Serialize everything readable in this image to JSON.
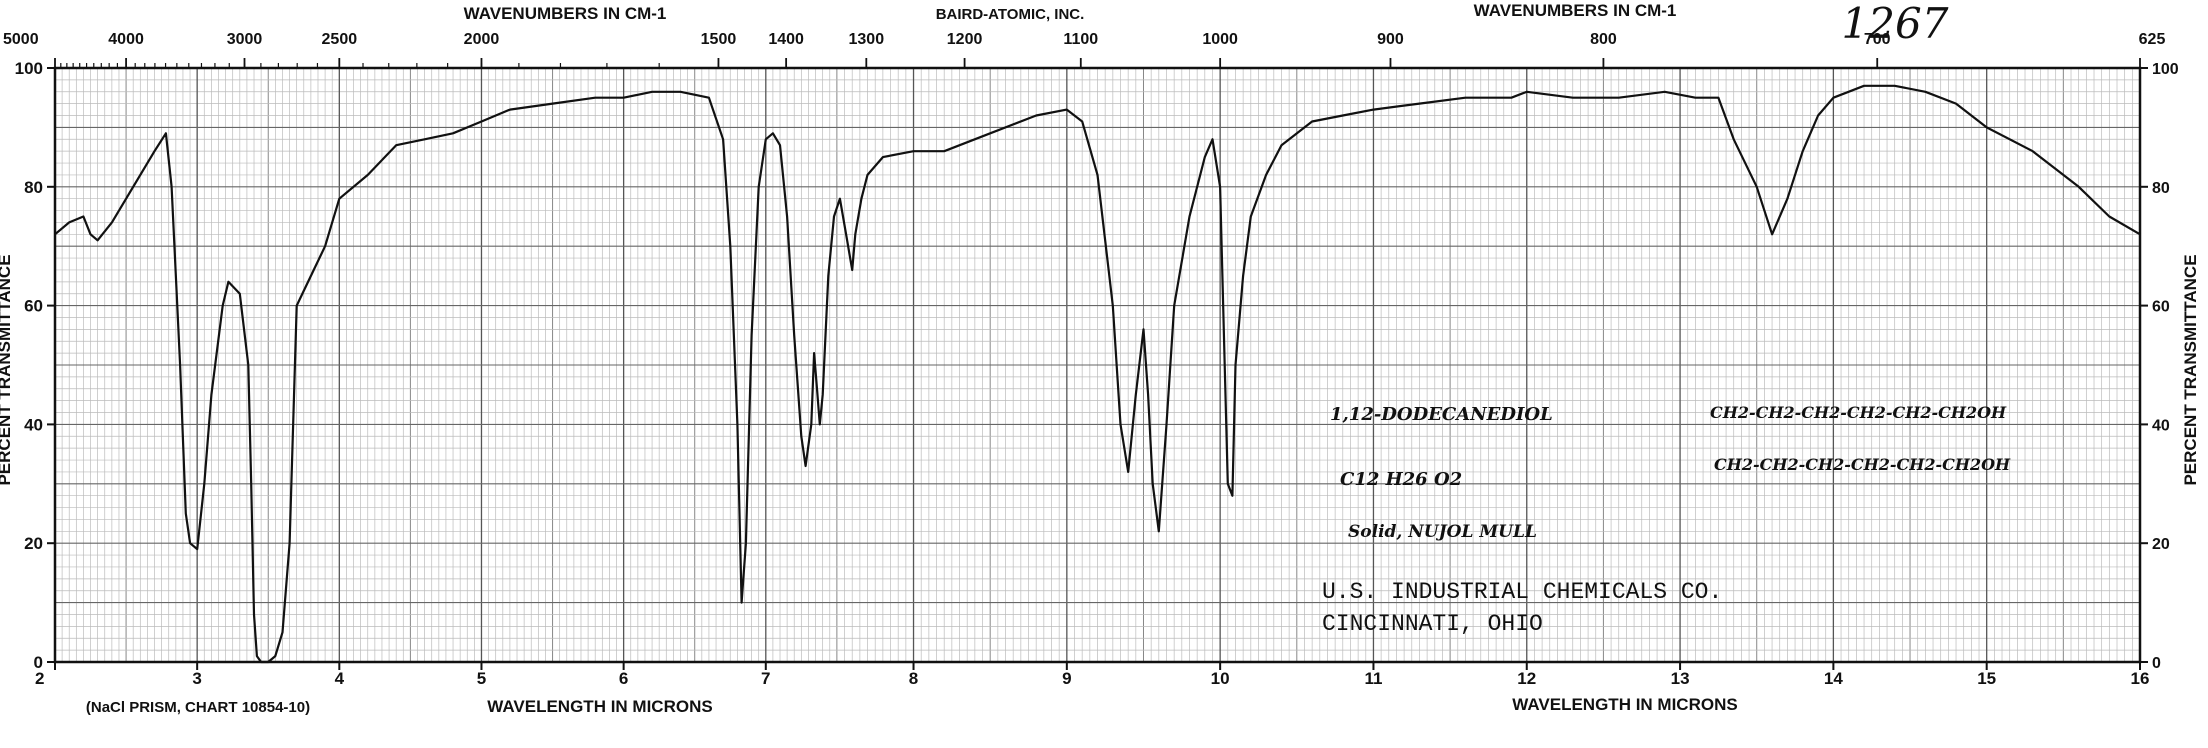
{
  "chart_data": {
    "type": "line",
    "title": "BAIRD-ATOMIC, INC.",
    "catalog_number": "1267",
    "top_axis_label_left": "WAVENUMBERS IN CM-1",
    "top_axis_label_right": "WAVENUMBERS IN CM-1",
    "bottom_axis_label_left": "WAVELENGTH IN MICRONS",
    "bottom_axis_label_right": "WAVELENGTH IN MICRONS",
    "ylabel_left": "PERCENT TRANSMITTANCE",
    "ylabel_right": "PERCENT TRANSMITTANCE",
    "prism_note": "(NaCl PRISM, CHART 10854-10)",
    "xlim": [
      2,
      16
    ],
    "ylim": [
      0,
      100
    ],
    "x_unit": "microns",
    "y_unit": "percent transmittance",
    "grid": true,
    "x_ticks": [
      2,
      3,
      4,
      5,
      6,
      7,
      8,
      9,
      10,
      11,
      12,
      13,
      14,
      15,
      16
    ],
    "x_tick_labels": [
      "2",
      "3",
      "4",
      "5",
      "6",
      "7",
      "8",
      "9",
      "10",
      "11",
      "12",
      "13",
      "14",
      "15",
      "16"
    ],
    "y_ticks_left": [
      0,
      20,
      40,
      60,
      80,
      100
    ],
    "y_tick_labels_left": [
      "0",
      "20",
      "40",
      "60",
      "80",
      "100"
    ],
    "y_ticks_right": [
      0,
      20,
      40,
      60,
      80,
      100
    ],
    "y_tick_labels_right": [
      "0",
      "20",
      "40",
      "60",
      "80",
      "100"
    ],
    "top_ticks": [
      {
        "label": "5000",
        "micron": 2.0
      },
      {
        "label": "4000",
        "micron": 2.5
      },
      {
        "label": "3000",
        "micron": 3.333
      },
      {
        "label": "2500",
        "micron": 4.0
      },
      {
        "label": "2000",
        "micron": 5.0
      },
      {
        "label": "1500",
        "micron": 6.667
      },
      {
        "label": "1400",
        "micron": 7.143
      },
      {
        "label": "1300",
        "micron": 7.692
      },
      {
        "label": "1200",
        "micron": 8.333
      },
      {
        "label": "1100",
        "micron": 9.091
      },
      {
        "label": "1000",
        "micron": 10.0
      },
      {
        "label": "900",
        "micron": 11.111
      },
      {
        "label": "800",
        "micron": 12.5
      },
      {
        "label": "700",
        "micron": 14.286
      },
      {
        "label": "625",
        "micron": 16.0
      }
    ],
    "annotations": {
      "compound_name": "1,12-DODECANEDIOL",
      "formula": "C12 H26 O2",
      "phase": "Solid, NUJOL MULL",
      "structure_line1": "CH2-CH2-CH2-CH2-CH2-CH2OH",
      "structure_line2": "CH2-CH2-CH2-CH2-CH2-CH2OH",
      "source_line1": "U.S. INDUSTRIAL CHEMICALS CO.",
      "source_line2": "CINCINNATI, OHIO"
    },
    "series": [
      {
        "x": [
          2.0,
          2.1,
          2.2,
          2.25,
          2.3,
          2.4,
          2.5,
          2.6,
          2.7,
          2.78,
          2.82,
          2.88,
          2.92,
          2.95,
          3.0,
          3.05,
          3.1,
          3.18,
          3.22,
          3.3,
          3.36,
          3.38,
          3.4,
          3.42,
          3.45,
          3.5,
          3.55,
          3.6,
          3.65,
          3.7,
          3.8,
          3.9,
          4.0,
          4.2,
          4.4,
          4.6,
          4.8,
          5.0,
          5.2,
          5.5,
          5.8,
          6.0,
          6.2,
          6.4,
          6.6,
          6.7,
          6.75,
          6.8,
          6.83,
          6.86,
          6.9,
          6.95,
          7.0,
          7.05,
          7.1,
          7.15,
          7.2,
          7.25,
          7.28,
          7.32,
          7.34,
          7.36,
          7.38,
          7.4,
          7.44,
          7.48,
          7.52,
          7.56,
          7.6,
          7.62,
          7.66,
          7.7,
          7.8,
          8.0,
          8.2,
          8.5,
          8.8,
          9.0,
          9.1,
          9.2,
          9.3,
          9.35,
          9.4,
          9.45,
          9.5,
          9.53,
          9.56,
          9.6,
          9.65,
          9.7,
          9.8,
          9.9,
          9.95,
          10.0,
          10.03,
          10.05,
          10.08,
          10.1,
          10.15,
          10.2,
          10.3,
          10.4,
          10.6,
          10.8,
          11.0,
          11.3,
          11.6,
          11.9,
          12.0,
          12.3,
          12.6,
          12.9,
          13.1,
          13.25,
          13.35,
          13.5,
          13.6,
          13.7,
          13.8,
          13.9,
          14.0,
          14.2,
          14.4,
          14.6,
          14.8,
          15.0,
          15.3,
          15.6,
          15.8,
          16.0
        ],
        "y": [
          72,
          74,
          75,
          72,
          71,
          74,
          78,
          82,
          86,
          89,
          80,
          50,
          25,
          20,
          19,
          30,
          45,
          60,
          64,
          62,
          50,
          30,
          8,
          1,
          0,
          0,
          1,
          5,
          20,
          60,
          65,
          70,
          78,
          82,
          87,
          88,
          89,
          91,
          93,
          94,
          95,
          95,
          96,
          96,
          95,
          88,
          70,
          40,
          10,
          20,
          55,
          80,
          88,
          89,
          87,
          75,
          55,
          38,
          33,
          40,
          52,
          46,
          40,
          45,
          65,
          75,
          78,
          72,
          66,
          72,
          78,
          82,
          85,
          86,
          86,
          89,
          92,
          93,
          91,
          82,
          60,
          40,
          32,
          45,
          56,
          45,
          30,
          22,
          40,
          60,
          75,
          85,
          88,
          80,
          50,
          30,
          28,
          50,
          65,
          75,
          82,
          87,
          91,
          92,
          93,
          94,
          95,
          95,
          96,
          95,
          95,
          96,
          95,
          95,
          88,
          80,
          72,
          78,
          86,
          92,
          95,
          97,
          97,
          96,
          94,
          90,
          86,
          80,
          75,
          72
        ]
      }
    ]
  }
}
